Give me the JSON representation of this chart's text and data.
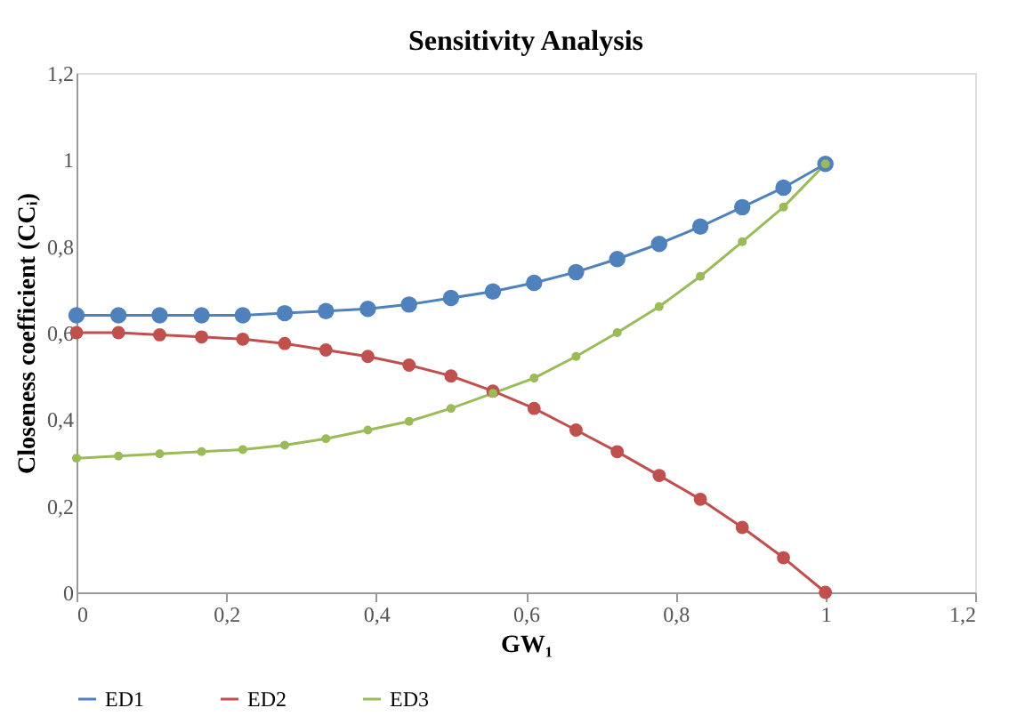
{
  "chart_data": {
    "type": "line",
    "title": "Sensitivity Analysis",
    "xlabel": "GW₁",
    "ylabel": "Closeness coefficient (CCᵢ)",
    "x": [
      0,
      0.056,
      0.111,
      0.167,
      0.222,
      0.278,
      0.333,
      0.389,
      0.444,
      0.5,
      0.556,
      0.611,
      0.667,
      0.722,
      0.778,
      0.833,
      0.889,
      0.944,
      1
    ],
    "series": [
      {
        "name": "ED1",
        "color": "#4f81bd",
        "values": [
          0.64,
          0.64,
          0.64,
          0.64,
          0.64,
          0.645,
          0.65,
          0.655,
          0.665,
          0.68,
          0.695,
          0.715,
          0.74,
          0.77,
          0.805,
          0.845,
          0.89,
          0.935,
          0.99
        ]
      },
      {
        "name": "ED2",
        "color": "#c0504d",
        "values": [
          0.6,
          0.6,
          0.595,
          0.59,
          0.585,
          0.575,
          0.56,
          0.545,
          0.525,
          0.5,
          0.465,
          0.425,
          0.375,
          0.325,
          0.27,
          0.215,
          0.15,
          0.08,
          0.0
        ]
      },
      {
        "name": "ED3",
        "color": "#9bbb59",
        "values": [
          0.31,
          0.315,
          0.32,
          0.325,
          0.33,
          0.34,
          0.355,
          0.375,
          0.395,
          0.425,
          0.46,
          0.495,
          0.545,
          0.6,
          0.66,
          0.73,
          0.81,
          0.89,
          0.99
        ]
      }
    ],
    "xlim": [
      0,
      1.2
    ],
    "ylim": [
      0,
      1.2
    ],
    "xticks": [
      0,
      {
        "value": 0.2,
        "label": "0,2"
      },
      {
        "value": 0.4,
        "label": "0,4"
      },
      {
        "value": 0.6,
        "label": "0,6"
      },
      {
        "value": 0.8,
        "label": "0,8"
      },
      1,
      {
        "value": 1.2,
        "label": "1,2"
      }
    ],
    "yticks": [
      0,
      {
        "value": 0.2,
        "label": "0,2"
      },
      {
        "value": 0.4,
        "label": "0,4"
      },
      {
        "value": 0.6,
        "label": "0,6"
      },
      {
        "value": 0.8,
        "label": "0,8"
      },
      1,
      {
        "value": 1.2,
        "label": "1,2"
      }
    ],
    "grid": false,
    "legend": "bottom",
    "marker": "circle",
    "line_style": "solid"
  }
}
